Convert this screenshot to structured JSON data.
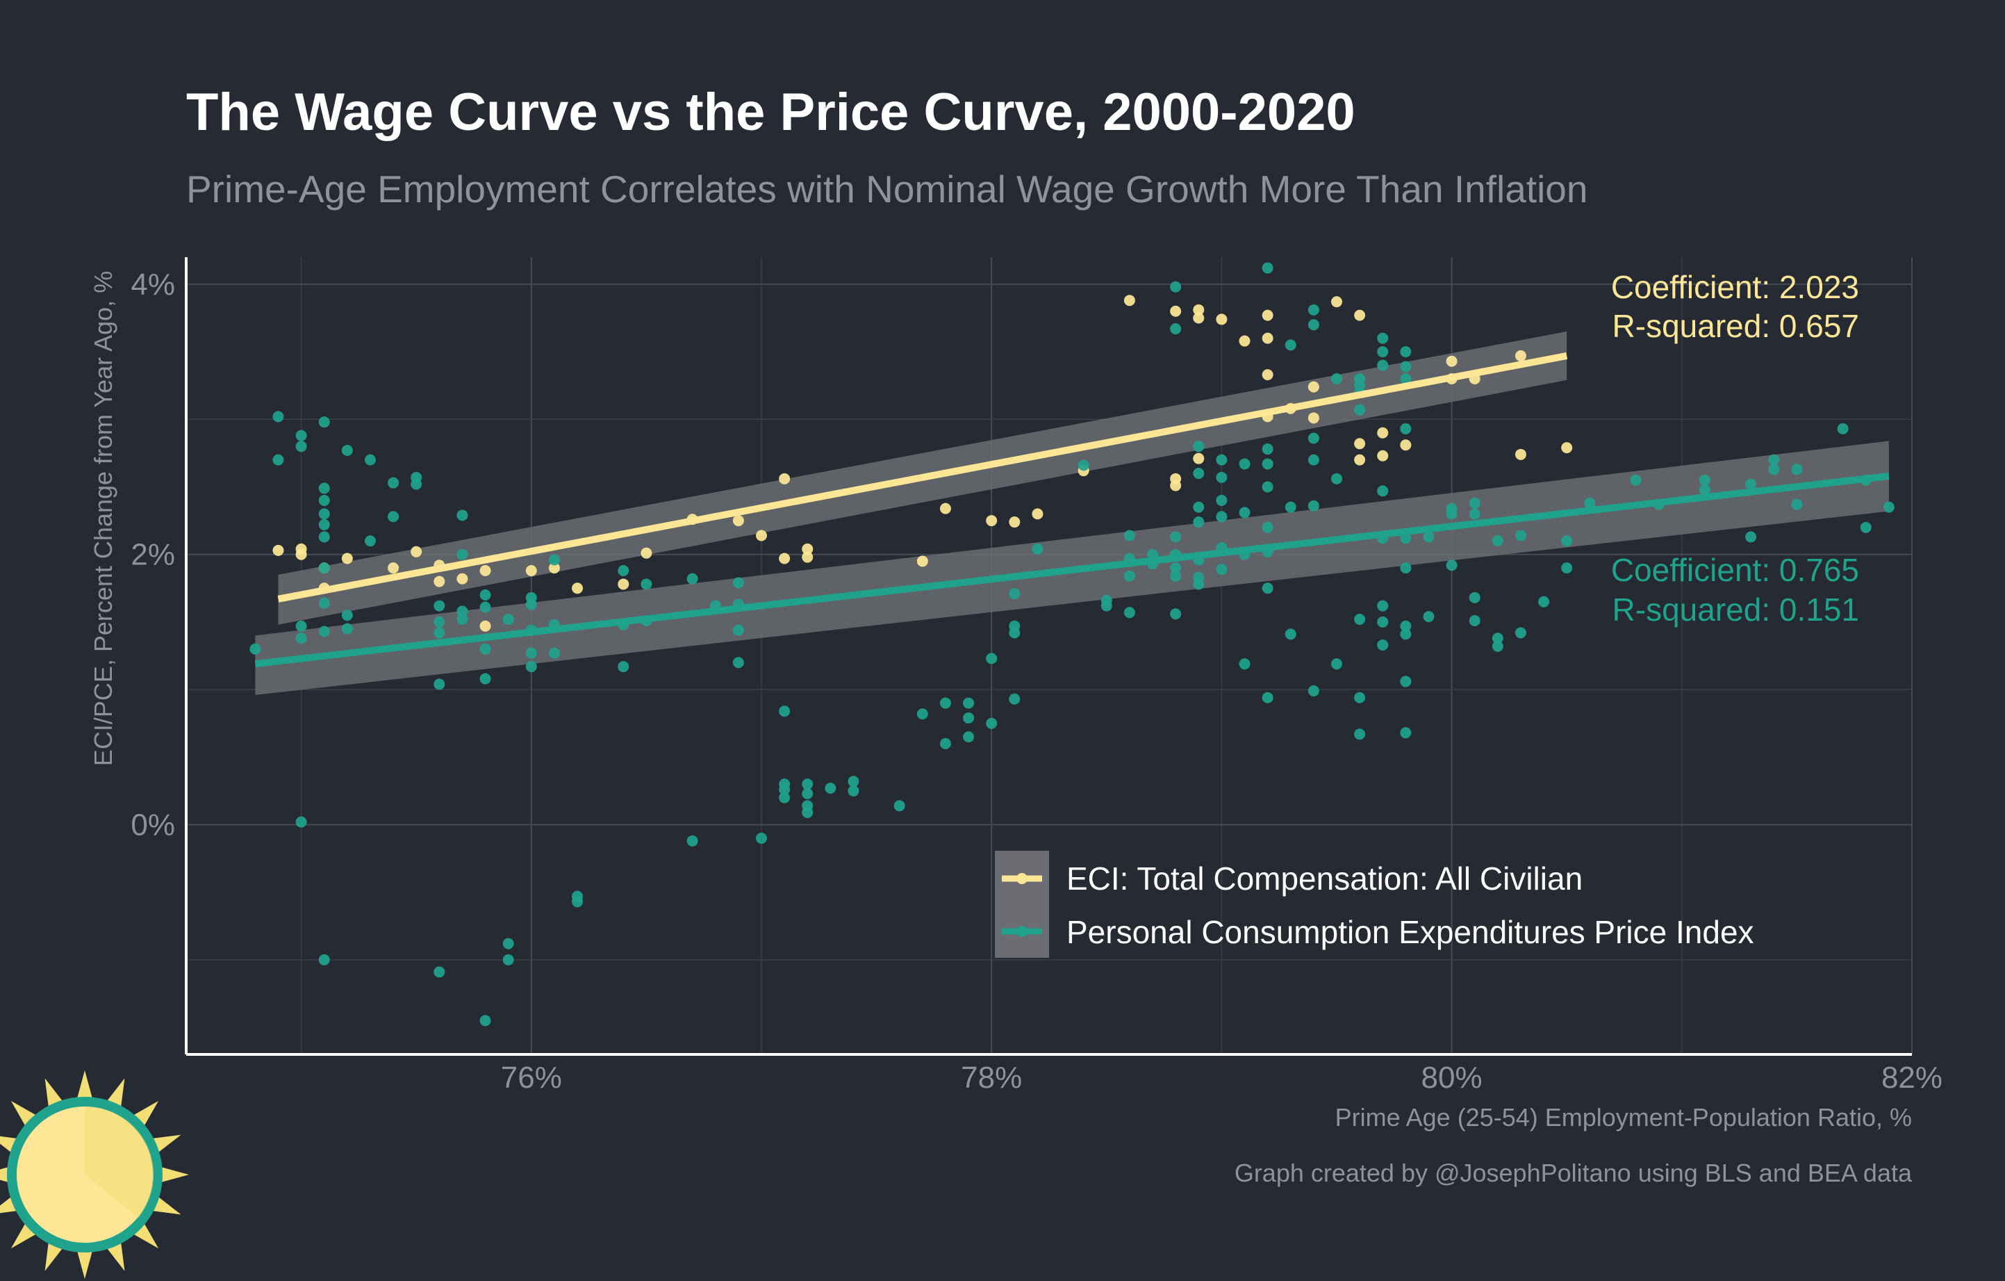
{
  "title": "The Wage Curve vs the Price Curve, 2000-2020",
  "subtitle": "Prime-Age Employment Correlates with Nominal Wage Growth More Than Inflation",
  "credit": "Graph created by @JosephPolitano using BLS and BEA data",
  "logo": {
    "icon": "sun-logo-icon",
    "colors": [
      "#f2de75",
      "#fde796",
      "#1fa38d"
    ]
  },
  "chart_data": {
    "type": "scatter",
    "xlabel": "Prime Age (25-54) Employment-Population Ratio, %",
    "ylabel": "ECI/PCE, Percent Change from Year Ago, %",
    "xlim": [
      74.5,
      82
    ],
    "ylim": [
      -1.7,
      4.2
    ],
    "x_ticks": [
      76,
      78,
      80,
      82
    ],
    "x_tick_labels": [
      "76%",
      "78%",
      "80%",
      "82%"
    ],
    "y_ticks": [
      0,
      2,
      4
    ],
    "y_tick_labels": [
      "0%",
      "2%",
      "4%"
    ],
    "grid": true,
    "legend_position": "bottom-right, inside plot",
    "series": [
      {
        "name": "ECI: Total Compensation: All Civilian",
        "color": "#fde796",
        "coefficient_label": "Coefficient: 2.023",
        "r_squared_label": "R-squared: 0.657",
        "fit": {
          "x": [
            74.9,
            80.5
          ],
          "y": [
            1.67,
            3.47
          ]
        },
        "band": {
          "x": [
            74.9,
            80.5
          ],
          "upper": [
            1.85,
            3.65
          ],
          "lower": [
            1.48,
            3.29
          ]
        },
        "points": [
          [
            74.9,
            2.03
          ],
          [
            75.0,
            2.0
          ],
          [
            75.0,
            2.04
          ],
          [
            75.1,
            1.9
          ],
          [
            75.1,
            1.75
          ],
          [
            75.2,
            1.97
          ],
          [
            75.4,
            1.9
          ],
          [
            75.5,
            2.02
          ],
          [
            75.6,
            1.92
          ],
          [
            75.6,
            1.8
          ],
          [
            75.7,
            1.82
          ],
          [
            75.8,
            1.47
          ],
          [
            75.8,
            1.88
          ],
          [
            76.0,
            1.88
          ],
          [
            76.1,
            1.9
          ],
          [
            76.2,
            1.75
          ],
          [
            76.4,
            1.78
          ],
          [
            76.5,
            2.01
          ],
          [
            76.7,
            2.26
          ],
          [
            76.9,
            2.25
          ],
          [
            77.0,
            2.14
          ],
          [
            77.1,
            2.56
          ],
          [
            77.1,
            1.97
          ],
          [
            77.2,
            2.04
          ],
          [
            77.2,
            1.98
          ],
          [
            77.7,
            1.95
          ],
          [
            77.8,
            2.34
          ],
          [
            78.0,
            2.25
          ],
          [
            78.1,
            2.24
          ],
          [
            78.2,
            2.3
          ],
          [
            78.4,
            2.62
          ],
          [
            78.6,
            3.88
          ],
          [
            78.8,
            3.8
          ],
          [
            78.8,
            2.56
          ],
          [
            78.8,
            2.51
          ],
          [
            78.9,
            3.81
          ],
          [
            78.9,
            3.75
          ],
          [
            78.9,
            2.71
          ],
          [
            79.0,
            3.74
          ],
          [
            79.1,
            3.58
          ],
          [
            79.2,
            3.6
          ],
          [
            79.2,
            3.77
          ],
          [
            79.2,
            3.33
          ],
          [
            79.2,
            3.02
          ],
          [
            79.3,
            3.08
          ],
          [
            79.4,
            3.24
          ],
          [
            79.4,
            3.01
          ],
          [
            79.5,
            3.87
          ],
          [
            79.6,
            3.77
          ],
          [
            79.6,
            2.82
          ],
          [
            79.6,
            2.7
          ],
          [
            79.7,
            2.9
          ],
          [
            79.7,
            2.73
          ],
          [
            79.8,
            2.81
          ],
          [
            80.0,
            3.43
          ],
          [
            80.0,
            3.3
          ],
          [
            80.1,
            3.3
          ],
          [
            80.3,
            3.47
          ],
          [
            80.3,
            2.74
          ],
          [
            80.5,
            2.79
          ]
        ]
      },
      {
        "name": "Personal Consumption Expenditures Price Index",
        "color": "#1fa38d",
        "coefficient_label": "Coefficient: 0.765",
        "r_squared_label": "R-squared: 0.151",
        "fit": {
          "x": [
            74.8,
            81.9
          ],
          "y": [
            1.19,
            2.58
          ]
        },
        "band": {
          "x": [
            74.8,
            81.9
          ],
          "upper": [
            1.4,
            2.84
          ],
          "lower": [
            0.96,
            2.32
          ]
        },
        "points": [
          [
            74.8,
            1.3
          ],
          [
            74.9,
            3.02
          ],
          [
            74.9,
            2.7
          ],
          [
            75.0,
            2.88
          ],
          [
            75.0,
            2.8
          ],
          [
            75.0,
            1.47
          ],
          [
            75.0,
            1.38
          ],
          [
            75.0,
            0.02
          ],
          [
            75.1,
            2.98
          ],
          [
            75.1,
            2.49
          ],
          [
            75.1,
            2.4
          ],
          [
            75.1,
            2.3
          ],
          [
            75.1,
            2.22
          ],
          [
            75.1,
            2.13
          ],
          [
            75.1,
            1.9
          ],
          [
            75.1,
            1.64
          ],
          [
            75.1,
            1.43
          ],
          [
            75.1,
            -1.0
          ],
          [
            75.2,
            2.77
          ],
          [
            75.2,
            1.55
          ],
          [
            75.2,
            1.45
          ],
          [
            75.3,
            2.7
          ],
          [
            75.3,
            2.1
          ],
          [
            75.4,
            2.53
          ],
          [
            75.4,
            2.28
          ],
          [
            75.5,
            2.57
          ],
          [
            75.5,
            2.52
          ],
          [
            75.6,
            1.62
          ],
          [
            75.6,
            1.5
          ],
          [
            75.6,
            1.42
          ],
          [
            75.6,
            1.04
          ],
          [
            75.6,
            -1.09
          ],
          [
            75.7,
            2.29
          ],
          [
            75.7,
            2.0
          ],
          [
            75.7,
            1.58
          ],
          [
            75.7,
            1.52
          ],
          [
            75.8,
            1.7
          ],
          [
            75.8,
            1.61
          ],
          [
            75.8,
            1.3
          ],
          [
            75.8,
            1.08
          ],
          [
            75.8,
            -1.45
          ],
          [
            75.9,
            1.52
          ],
          [
            75.9,
            -0.88
          ],
          [
            75.9,
            -1.0
          ],
          [
            76.0,
            1.68
          ],
          [
            76.0,
            1.63
          ],
          [
            76.0,
            1.44
          ],
          [
            76.0,
            1.27
          ],
          [
            76.0,
            1.17
          ],
          [
            76.1,
            1.96
          ],
          [
            76.1,
            1.48
          ],
          [
            76.1,
            1.27
          ],
          [
            76.2,
            -0.53
          ],
          [
            76.2,
            -0.57
          ],
          [
            76.4,
            1.88
          ],
          [
            76.4,
            1.48
          ],
          [
            76.4,
            1.17
          ],
          [
            76.5,
            1.78
          ],
          [
            76.5,
            1.51
          ],
          [
            76.7,
            1.82
          ],
          [
            76.7,
            -0.12
          ],
          [
            76.8,
            1.62
          ],
          [
            76.9,
            1.79
          ],
          [
            76.9,
            1.63
          ],
          [
            76.9,
            1.44
          ],
          [
            76.9,
            1.2
          ],
          [
            77.0,
            -0.1
          ],
          [
            77.1,
            0.84
          ],
          [
            77.1,
            0.3
          ],
          [
            77.1,
            0.26
          ],
          [
            77.1,
            0.2
          ],
          [
            77.2,
            0.3
          ],
          [
            77.2,
            0.23
          ],
          [
            77.2,
            0.14
          ],
          [
            77.2,
            0.09
          ],
          [
            77.3,
            0.27
          ],
          [
            77.4,
            0.32
          ],
          [
            77.4,
            0.25
          ],
          [
            77.6,
            0.14
          ],
          [
            77.7,
            0.82
          ],
          [
            77.8,
            0.9
          ],
          [
            77.8,
            0.6
          ],
          [
            77.9,
            0.9
          ],
          [
            77.9,
            0.79
          ],
          [
            77.9,
            0.65
          ],
          [
            78.0,
            1.23
          ],
          [
            78.0,
            0.75
          ],
          [
            78.1,
            1.71
          ],
          [
            78.1,
            1.47
          ],
          [
            78.1,
            1.42
          ],
          [
            78.1,
            0.93
          ],
          [
            78.2,
            2.04
          ],
          [
            78.4,
            2.66
          ],
          [
            78.5,
            1.66
          ],
          [
            78.5,
            1.62
          ],
          [
            78.6,
            2.14
          ],
          [
            78.6,
            1.97
          ],
          [
            78.6,
            1.84
          ],
          [
            78.6,
            1.57
          ],
          [
            78.7,
            2.0
          ],
          [
            78.7,
            1.93
          ],
          [
            78.8,
            3.98
          ],
          [
            78.8,
            3.67
          ],
          [
            78.8,
            2.13
          ],
          [
            78.8,
            2.0
          ],
          [
            78.8,
            1.9
          ],
          [
            78.8,
            1.84
          ],
          [
            78.8,
            1.56
          ],
          [
            78.9,
            2.8
          ],
          [
            78.9,
            2.6
          ],
          [
            78.9,
            2.35
          ],
          [
            78.9,
            2.24
          ],
          [
            78.9,
            1.96
          ],
          [
            78.9,
            1.83
          ],
          [
            78.9,
            1.78
          ],
          [
            79.0,
            2.7
          ],
          [
            79.0,
            2.57
          ],
          [
            79.0,
            2.4
          ],
          [
            79.0,
            2.28
          ],
          [
            79.0,
            2.05
          ],
          [
            79.0,
            1.89
          ],
          [
            79.1,
            2.67
          ],
          [
            79.1,
            2.31
          ],
          [
            79.1,
            2.0
          ],
          [
            79.1,
            1.19
          ],
          [
            79.2,
            4.12
          ],
          [
            79.2,
            2.78
          ],
          [
            79.2,
            2.67
          ],
          [
            79.2,
            2.5
          ],
          [
            79.2,
            2.2
          ],
          [
            79.2,
            2.02
          ],
          [
            79.2,
            1.75
          ],
          [
            79.2,
            0.94
          ],
          [
            79.3,
            3.55
          ],
          [
            79.3,
            2.35
          ],
          [
            79.3,
            1.41
          ],
          [
            79.4,
            3.81
          ],
          [
            79.4,
            3.7
          ],
          [
            79.4,
            2.86
          ],
          [
            79.4,
            2.7
          ],
          [
            79.4,
            2.36
          ],
          [
            79.4,
            0.99
          ],
          [
            79.5,
            3.3
          ],
          [
            79.5,
            2.56
          ],
          [
            79.5,
            1.19
          ],
          [
            79.6,
            3.3
          ],
          [
            79.6,
            3.25
          ],
          [
            79.6,
            3.2
          ],
          [
            79.6,
            3.07
          ],
          [
            79.6,
            1.52
          ],
          [
            79.6,
            0.94
          ],
          [
            79.6,
            0.67
          ],
          [
            79.7,
            3.6
          ],
          [
            79.7,
            3.5
          ],
          [
            79.7,
            3.4
          ],
          [
            79.7,
            2.47
          ],
          [
            79.7,
            2.12
          ],
          [
            79.7,
            1.62
          ],
          [
            79.7,
            1.5
          ],
          [
            79.7,
            1.33
          ],
          [
            79.8,
            3.5
          ],
          [
            79.8,
            3.39
          ],
          [
            79.8,
            3.3
          ],
          [
            79.8,
            2.93
          ],
          [
            79.8,
            2.12
          ],
          [
            79.8,
            1.9
          ],
          [
            79.8,
            1.47
          ],
          [
            79.8,
            1.41
          ],
          [
            79.8,
            1.06
          ],
          [
            79.8,
            0.68
          ],
          [
            79.9,
            2.13
          ],
          [
            79.9,
            1.54
          ],
          [
            80.0,
            2.34
          ],
          [
            80.0,
            2.3
          ],
          [
            80.0,
            1.92
          ],
          [
            80.1,
            2.38
          ],
          [
            80.1,
            2.3
          ],
          [
            80.1,
            1.68
          ],
          [
            80.1,
            1.51
          ],
          [
            80.2,
            2.1
          ],
          [
            80.2,
            1.38
          ],
          [
            80.2,
            1.32
          ],
          [
            80.3,
            2.14
          ],
          [
            80.3,
            1.42
          ],
          [
            80.4,
            1.65
          ],
          [
            80.5,
            2.1
          ],
          [
            80.5,
            1.9
          ],
          [
            80.6,
            2.38
          ],
          [
            80.8,
            2.55
          ],
          [
            80.9,
            2.37
          ],
          [
            81.1,
            2.55
          ],
          [
            81.1,
            2.48
          ],
          [
            81.3,
            2.52
          ],
          [
            81.3,
            2.13
          ],
          [
            81.4,
            2.7
          ],
          [
            81.4,
            2.63
          ],
          [
            81.5,
            2.63
          ],
          [
            81.5,
            2.37
          ],
          [
            81.7,
            2.93
          ],
          [
            81.8,
            2.55
          ],
          [
            81.8,
            2.2
          ],
          [
            81.9,
            2.35
          ]
        ]
      }
    ]
  }
}
